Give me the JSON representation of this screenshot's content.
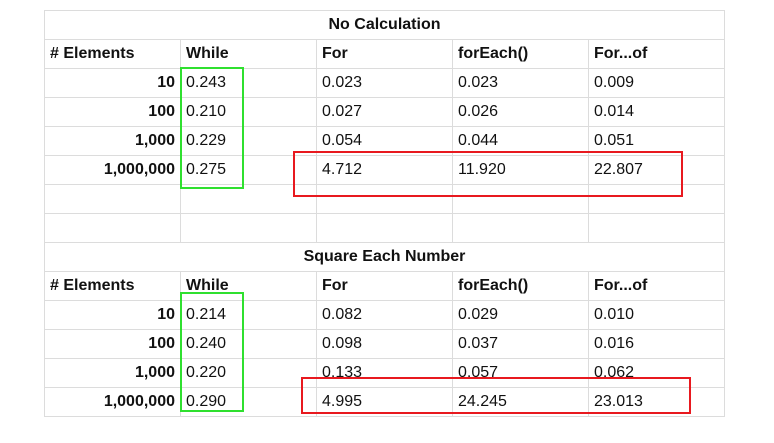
{
  "colors": {
    "highlight_green": "#2fe02f",
    "highlight_red": "#e8191f",
    "gridline": "#dcdcdc"
  },
  "no_calc": {
    "title": "No Calculation",
    "headers": [
      "# Elements",
      "While",
      "For",
      "forEach()",
      "For...of"
    ],
    "rows": [
      [
        "10",
        "0.243",
        "0.023",
        "0.023",
        "0.009"
      ],
      [
        "100",
        "0.210",
        "0.027",
        "0.026",
        "0.014"
      ],
      [
        "1,000",
        "0.229",
        "0.054",
        "0.044",
        "0.051"
      ],
      [
        "1,000,000",
        "0.275",
        "4.712",
        "11.920",
        "22.807"
      ]
    ]
  },
  "square": {
    "title": "Square Each Number",
    "headers": [
      "# Elements",
      "While",
      "For",
      "forEach()",
      "For...of"
    ],
    "rows": [
      [
        "10",
        "0.214",
        "0.082",
        "0.029",
        "0.010"
      ],
      [
        "100",
        "0.240",
        "0.098",
        "0.037",
        "0.016"
      ],
      [
        "1,000",
        "0.220",
        "0.133",
        "0.057",
        "0.062"
      ],
      [
        "1,000,000",
        "0.290",
        "4.995",
        "24.245",
        "23.013"
      ]
    ]
  }
}
